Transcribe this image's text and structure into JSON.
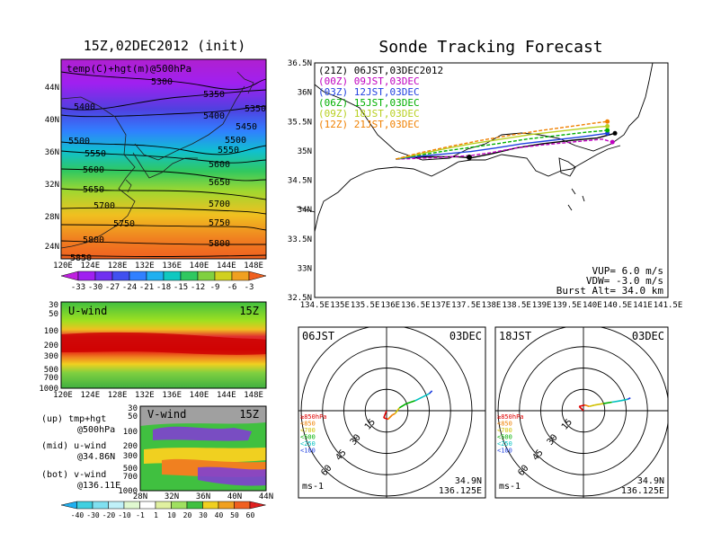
{
  "left": {
    "top_title": "15Z,02DEC2012 (init)",
    "map_label": "temp(C)+hgt(m)@500hPa",
    "lat_labels": [
      "44N",
      "40N",
      "36N",
      "32N",
      "28N",
      "24N"
    ],
    "lon_labels": [
      "120E",
      "124E",
      "128E",
      "132E",
      "136E",
      "140E",
      "144E",
      "148E"
    ],
    "contours": [
      {
        "label": "5300"
      },
      {
        "label": "5350"
      },
      {
        "label": "5350"
      },
      {
        "label": "5400"
      },
      {
        "label": "5400"
      },
      {
        "label": "5450"
      },
      {
        "label": "5500"
      },
      {
        "label": "5500"
      },
      {
        "label": "5550"
      },
      {
        "label": "5550"
      },
      {
        "label": "5600"
      },
      {
        "label": "5600"
      },
      {
        "label": "5650"
      },
      {
        "label": "5650"
      },
      {
        "label": "5700"
      },
      {
        "label": "5700"
      },
      {
        "label": "5750"
      },
      {
        "label": "5750"
      },
      {
        "label": "5800"
      },
      {
        "label": "5800"
      },
      {
        "label": "5850"
      }
    ],
    "temp_colorbar_labels": [
      "-33",
      "-30",
      "-27",
      "-24",
      "-21",
      "-18",
      "-15",
      "-12",
      "-9",
      "-6",
      "-3"
    ],
    "u_title": "U-wind",
    "u_time": "15Z",
    "u_levels": [
      "30",
      "50",
      "100",
      "200",
      "300",
      "500",
      "700",
      "1000"
    ],
    "u_lon_labels": [
      "120E",
      "124E",
      "128E",
      "132E",
      "136E",
      "140E",
      "144E",
      "148E"
    ],
    "v_title": "V-wind",
    "v_time": "15Z",
    "v_levels": [
      "30",
      "50",
      "100",
      "200",
      "300",
      "500",
      "700",
      "1000"
    ],
    "v_lat_labels": [
      "28N",
      "32N",
      "36N",
      "40N",
      "44N"
    ],
    "wind_colorbar_labels": [
      "-40",
      "-30",
      "-20",
      "-10",
      "-1",
      "1",
      "10",
      "20",
      "30",
      "40",
      "50",
      "60"
    ],
    "notes": [
      "(up) tmp+hgt",
      "@500hPa",
      "(mid) u-wind",
      "@34.86N",
      "(bot) v-wind",
      "@136.11E"
    ]
  },
  "right": {
    "title": "Sonde Tracking Forecast",
    "map_lat_labels": [
      "36.5N",
      "36N",
      "35.5N",
      "35N",
      "34.5N",
      "34N",
      "33.5N",
      "33N",
      "32.5N"
    ],
    "map_lon_labels": [
      "134.5E",
      "135E",
      "135.5E",
      "136E",
      "136.5E",
      "137E",
      "137.5E",
      "138E",
      "138.5E",
      "139E",
      "139.5E",
      "140E",
      "140.5E",
      "141E",
      "141.5E"
    ],
    "legend": [
      {
        "text": "(21Z) 06JST,03DEC2012",
        "color": "#000000"
      },
      {
        "text": "(00Z) 09JST,03DEC",
        "color": "#c000c0"
      },
      {
        "text": "(03Z) 12JST,03DEC",
        "color": "#2040e0"
      },
      {
        "text": "(06Z) 15JST,03DEC",
        "color": "#00b000"
      },
      {
        "text": "(09Z) 18JST,03DEC",
        "color": "#b8d020"
      },
      {
        "text": "(12Z) 21JST,03DEC",
        "color": "#f08000"
      }
    ],
    "params": [
      "VUP=  6.0 m/s",
      "VDW= -3.0 m/s",
      "Burst Alt= 34.0 km"
    ],
    "hodo_left": {
      "time": "06JST",
      "date": "03DEC",
      "lat": "34.9N",
      "lon": "136.125E",
      "unit": "ms-1",
      "rings": [
        "15",
        "30",
        "45",
        "60"
      ]
    },
    "hodo_right": {
      "time": "18JST",
      "date": "03DEC",
      "lat": "34.9N",
      "lon": "136.125E",
      "unit": "ms-1",
      "rings": [
        "15",
        "30",
        "45",
        "60"
      ]
    },
    "hodo_legend": [
      {
        "text": "≥850hPa",
        "color": "#e00000"
      },
      {
        "text": "<850",
        "color": "#f08000"
      },
      {
        "text": "<700",
        "color": "#d0c000"
      },
      {
        "text": "<500",
        "color": "#00b000"
      },
      {
        "text": "<250",
        "color": "#00c0c0"
      },
      {
        "text": "<100",
        "color": "#2040e0"
      }
    ]
  },
  "chart_data": [
    {
      "type": "line",
      "title": "Sonde Tracking Forecast",
      "xlim": [
        134.5,
        141.5
      ],
      "ylim": [
        32.5,
        36.5
      ],
      "series": [
        {
          "name": "(21Z) 06JST,03DEC2012",
          "color": "#000000",
          "x": [
            136.11,
            136.4,
            136.8,
            137.3,
            137.6,
            138.0,
            138.5,
            139.0,
            139.6,
            140.1,
            140.45
          ],
          "y": [
            34.86,
            34.89,
            34.9,
            34.9,
            34.88,
            34.95,
            35.05,
            35.12,
            35.18,
            35.22,
            35.3
          ]
        },
        {
          "name": "(00Z) 09JST,03DEC",
          "color": "#c000c0",
          "x": [
            136.11,
            136.5,
            137.0,
            137.6,
            138.0,
            138.5,
            139.0,
            139.6,
            140.2,
            140.4
          ],
          "y": [
            34.86,
            34.87,
            34.89,
            34.92,
            34.97,
            35.05,
            35.1,
            35.15,
            35.2,
            35.15
          ]
        },
        {
          "name": "(03Z) 12JST,03DEC",
          "color": "#2040e0",
          "x": [
            136.11,
            136.6,
            137.1,
            137.6,
            138.1,
            138.6,
            139.2,
            139.8,
            140.3
          ],
          "y": [
            34.86,
            34.91,
            34.95,
            34.99,
            35.05,
            35.12,
            35.18,
            35.24,
            35.3
          ]
        },
        {
          "name": "(06Z) 15JST,03DEC",
          "color": "#00b000",
          "x": [
            136.11,
            136.6,
            137.1,
            137.6,
            138.1,
            138.7,
            139.3,
            139.9,
            140.3
          ],
          "y": [
            34.86,
            34.93,
            35.0,
            35.06,
            35.12,
            35.2,
            35.26,
            35.32,
            35.35
          ]
        },
        {
          "name": "(09Z) 18JST,03DEC",
          "color": "#b8d020",
          "x": [
            136.11,
            136.6,
            137.1,
            137.6,
            138.2,
            138.8,
            139.4,
            140.0,
            140.3
          ],
          "y": [
            34.86,
            34.95,
            35.04,
            35.12,
            35.2,
            35.28,
            35.34,
            35.4,
            35.42
          ]
        },
        {
          "name": "(12Z) 21JST,03DEC",
          "color": "#f08000",
          "x": [
            136.11,
            136.6,
            137.2,
            137.8,
            138.4,
            139.0,
            139.6,
            140.1,
            140.3
          ],
          "y": [
            34.86,
            34.97,
            35.08,
            35.18,
            35.27,
            35.35,
            35.42,
            35.48,
            35.5
          ]
        }
      ]
    },
    {
      "type": "line",
      "title": "06JST 03DEC",
      "xlabel": "ms-1",
      "rlim": [
        0,
        60
      ],
      "ring_values": [
        15,
        30,
        45,
        60
      ],
      "points_uv": [
        [
          0,
          0
        ],
        [
          -2,
          -5
        ],
        [
          1,
          -6
        ],
        [
          4,
          -3
        ],
        [
          6,
          -2
        ],
        [
          9,
          2
        ],
        [
          14,
          5
        ],
        [
          20,
          7
        ],
        [
          26,
          10
        ],
        [
          30,
          12
        ],
        [
          32,
          14
        ]
      ]
    },
    {
      "type": "line",
      "title": "18JST 03DEC",
      "xlabel": "ms-1",
      "rlim": [
        0,
        60
      ],
      "ring_values": [
        15,
        30,
        45,
        60
      ],
      "points_uv": [
        [
          0,
          0
        ],
        [
          -3,
          3
        ],
        [
          1,
          4
        ],
        [
          4,
          3
        ],
        [
          8,
          4
        ],
        [
          14,
          5
        ],
        [
          20,
          6
        ],
        [
          26,
          7
        ],
        [
          31,
          8
        ],
        [
          33,
          9
        ]
      ]
    }
  ]
}
